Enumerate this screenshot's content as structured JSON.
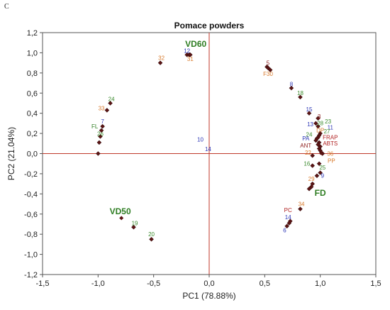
{
  "panel_letter": "C",
  "chart_data": {
    "type": "scatter",
    "title": "Pomace powders",
    "xlabel": "PC1 (78.88%)",
    "ylabel": "PC2 (21.04%)",
    "xlim": [
      -1.5,
      1.5
    ],
    "ylim": [
      -1.2,
      1.2
    ],
    "x_ticks": [
      -1.5,
      -1.0,
      -0.5,
      0.0,
      0.5,
      1.0,
      1.5
    ],
    "y_ticks": [
      -1.2,
      -1.0,
      -0.8,
      -0.6,
      -0.4,
      -0.2,
      0.0,
      0.2,
      0.4,
      0.6,
      0.8,
      1.0,
      1.2
    ],
    "x_tick_labels": [
      "-1,5",
      "-1,0",
      "-0,5",
      "0,0",
      "0,5",
      "1,0",
      "1,5"
    ],
    "y_tick_labels": [
      "-1,2",
      "-1,0",
      "-0,8",
      "-0,6",
      "-0,4",
      "-0,2",
      "0,0",
      "0,2",
      "0,4",
      "0,6",
      "0,8",
      "1,0",
      "1,2"
    ],
    "grid": false,
    "reference_lines": {
      "x": 0,
      "y": 0,
      "color": "#c0392b"
    },
    "colors": {
      "marker": "#5a1414",
      "blue": "#2b35b5",
      "orange": "#d87a2c",
      "green": "#3a8a2c",
      "red": "#b02020",
      "dark_green": "#2e7d22",
      "dark_red": "#8b1a1a"
    },
    "points": [
      {
        "x": -1.0,
        "y": 0.0,
        "label": "14",
        "color": "blue",
        "lx": -0.01,
        "ly": 0.025
      },
      {
        "x": -0.99,
        "y": 0.11,
        "label": "10",
        "color": "blue",
        "lx": -0.08,
        "ly": 0.12
      },
      {
        "x": -0.98,
        "y": 0.17,
        "label": "26",
        "color": "green",
        "lx": -0.98,
        "ly": 0.175
      },
      {
        "x": -0.97,
        "y": 0.23,
        "label": "FL",
        "color": "dark_green",
        "lx": -1.03,
        "ly": 0.25
      },
      {
        "x": -0.96,
        "y": 0.27,
        "label": "7",
        "color": "blue",
        "lx": -0.96,
        "ly": 0.3
      },
      {
        "x": -0.92,
        "y": 0.43,
        "label": "33",
        "color": "orange",
        "lx": -0.97,
        "ly": 0.43
      },
      {
        "x": -0.89,
        "y": 0.5,
        "label": "24",
        "color": "green",
        "lx": -0.88,
        "ly": 0.52
      },
      {
        "x": -0.44,
        "y": 0.9,
        "label": "32",
        "color": "orange",
        "lx": -0.43,
        "ly": 0.93
      },
      {
        "x": -0.2,
        "y": 0.98,
        "label": "12",
        "color": "blue",
        "lx": -0.2,
        "ly": 1.0
      },
      {
        "x": -0.18,
        "y": 0.98,
        "label": "31",
        "color": "orange",
        "lx": -0.17,
        "ly": 0.92
      },
      {
        "x": -0.17,
        "y": 0.98,
        "label": "",
        "color": "orange",
        "lx": 0,
        "ly": 0
      },
      {
        "x": -0.79,
        "y": -0.64,
        "label": "VD50",
        "color": "dark_green",
        "lx": -0.8,
        "ly": -0.6,
        "group": true
      },
      {
        "x": -0.68,
        "y": -0.73,
        "label": "19",
        "color": "green",
        "lx": -0.67,
        "ly": -0.71
      },
      {
        "x": -0.52,
        "y": -0.85,
        "label": "20",
        "color": "green",
        "lx": -0.52,
        "ly": -0.82
      },
      {
        "x": 0.52,
        "y": 0.86,
        "label": "5",
        "color": "dark_red",
        "lx": 0.53,
        "ly": 0.88
      },
      {
        "x": 0.53,
        "y": 0.85,
        "label": "F30",
        "color": "orange",
        "lx": 0.53,
        "ly": 0.77
      },
      {
        "x": 0.55,
        "y": 0.83,
        "label": "",
        "color": "orange",
        "lx": 0,
        "ly": 0
      },
      {
        "x": 0.74,
        "y": 0.65,
        "label": "8",
        "color": "blue",
        "lx": 0.74,
        "ly": 0.67
      },
      {
        "x": 0.82,
        "y": 0.56,
        "label": "18",
        "color": "green",
        "lx": 0.82,
        "ly": 0.58
      },
      {
        "x": 0.9,
        "y": 0.4,
        "label": "15",
        "color": "blue",
        "lx": 0.9,
        "ly": 0.42
      },
      {
        "x": 0.98,
        "y": 0.35,
        "label": "3",
        "color": "dark_red",
        "lx": 0.99,
        "ly": 0.35
      },
      {
        "x": 0.96,
        "y": 0.3,
        "label": "13",
        "color": "blue",
        "lx": 0.91,
        "ly": 0.27
      },
      {
        "x": 0.98,
        "y": 0.27,
        "label": "28",
        "color": "green",
        "lx": 1.0,
        "ly": 0.28
      },
      {
        "x": 1.0,
        "y": 0.2,
        "label": "23",
        "color": "green",
        "lx": 1.07,
        "ly": 0.3
      },
      {
        "x": 0.99,
        "y": 0.18,
        "label": "11",
        "color": "blue",
        "lx": 1.09,
        "ly": 0.24
      },
      {
        "x": 0.98,
        "y": 0.16,
        "label": "DP",
        "color": "orange",
        "lx": 1.0,
        "ly": 0.21
      },
      {
        "x": 0.97,
        "y": 0.15,
        "label": "27",
        "color": "green",
        "lx": 1.06,
        "ly": 0.2
      },
      {
        "x": 0.96,
        "y": 0.13,
        "label": "24",
        "color": "green",
        "lx": 0.9,
        "ly": 0.17
      },
      {
        "x": 0.99,
        "y": 0.11,
        "label": "FRAP",
        "color": "red",
        "lx": 1.09,
        "ly": 0.14
      },
      {
        "x": 0.98,
        "y": 0.09,
        "label": "PA",
        "color": "blue",
        "lx": 0.87,
        "ly": 0.13
      },
      {
        "x": 1.0,
        "y": 0.07,
        "label": "ABTS",
        "color": "red",
        "lx": 1.09,
        "ly": 0.08
      },
      {
        "x": 0.99,
        "y": 0.05,
        "label": "ANT",
        "color": "dark_red",
        "lx": 0.87,
        "ly": 0.06
      },
      {
        "x": 1.0,
        "y": 0.03,
        "label": "",
        "color": "dark_red",
        "lx": 0,
        "ly": 0
      },
      {
        "x": 1.01,
        "y": 0.01,
        "label": "4",
        "color": "dark_red",
        "lx": 1.01,
        "ly": -0.02
      },
      {
        "x": 1.02,
        "y": 0.0,
        "label": "36",
        "color": "orange",
        "lx": 1.09,
        "ly": -0.02
      },
      {
        "x": 0.93,
        "y": -0.02,
        "label": "22",
        "color": "orange",
        "lx": 0.89,
        "ly": -0.01
      },
      {
        "x": 0.99,
        "y": -0.1,
        "label": "PP",
        "color": "orange",
        "lx": 1.1,
        "ly": -0.09
      },
      {
        "x": 0.93,
        "y": -0.12,
        "label": "16",
        "color": "green",
        "lx": 0.88,
        "ly": -0.12
      },
      {
        "x": 1.0,
        "y": -0.19,
        "label": "25",
        "color": "green",
        "lx": 1.02,
        "ly": -0.16
      },
      {
        "x": 0.97,
        "y": -0.22,
        "label": "9",
        "color": "blue",
        "lx": 1.02,
        "ly": -0.24
      },
      {
        "x": 0.93,
        "y": -0.3,
        "label": "29",
        "color": "orange",
        "lx": 0.92,
        "ly": -0.27
      },
      {
        "x": 0.92,
        "y": -0.33,
        "label": "",
        "color": "orange",
        "lx": 0,
        "ly": 0
      },
      {
        "x": 0.9,
        "y": -0.35,
        "label": "",
        "color": "orange",
        "lx": 0,
        "ly": 0
      },
      {
        "x": 0.82,
        "y": -0.55,
        "label": "34",
        "color": "orange",
        "lx": 0.83,
        "ly": -0.52
      },
      {
        "x": 0.73,
        "y": -0.67,
        "label": "PC",
        "color": "red",
        "lx": 0.71,
        "ly": -0.58
      },
      {
        "x": 0.72,
        "y": -0.69,
        "label": "14",
        "color": "blue",
        "lx": 0.71,
        "ly": -0.65
      },
      {
        "x": 0.7,
        "y": -0.72,
        "label": "6",
        "color": "blue",
        "lx": 0.68,
        "ly": -0.78
      }
    ],
    "group_labels": [
      {
        "label": "VD60",
        "x": -0.12,
        "y": 1.06,
        "color": "dark_green"
      },
      {
        "label": "FD",
        "x": 1.0,
        "y": -0.42,
        "color": "dark_green"
      }
    ]
  }
}
